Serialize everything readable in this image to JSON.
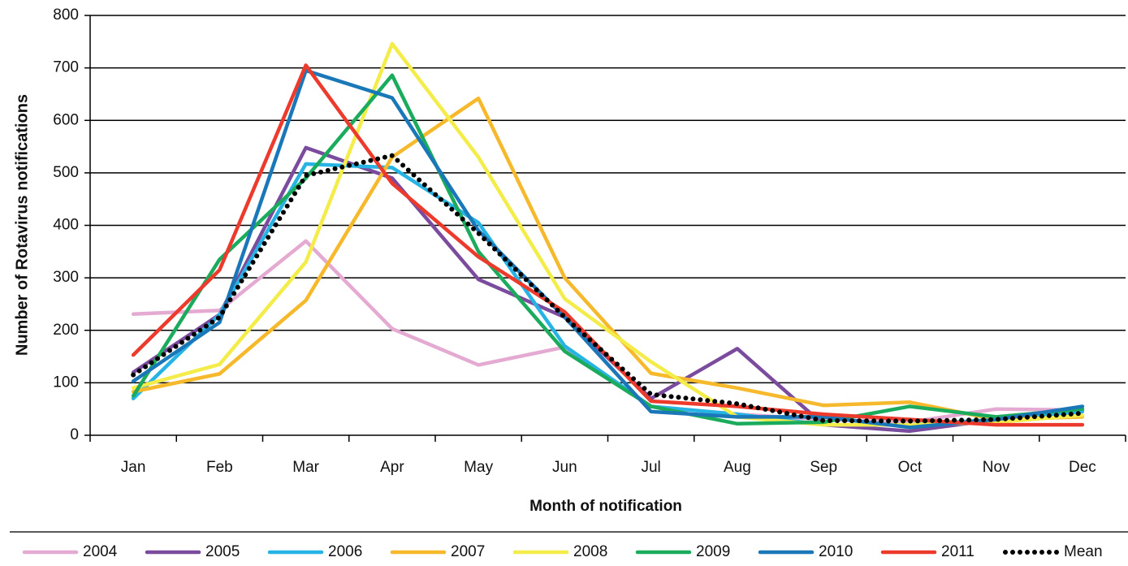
{
  "chart_data": {
    "type": "line",
    "x_label": "Month of notification",
    "y_label": "Number of Rotavirus notifications",
    "categories": [
      "Jan",
      "Feb",
      "Mar",
      "Apr",
      "May",
      "Jun",
      "Jul",
      "Aug",
      "Sep",
      "Oct",
      "Nov",
      "Dec"
    ],
    "ylim": [
      0,
      800
    ],
    "yticks": [
      0,
      100,
      200,
      300,
      400,
      500,
      600,
      700,
      800
    ],
    "grid": true,
    "legend": "bottom",
    "series": [
      {
        "name": "2004",
        "color": "#e4aad2",
        "values": [
          231,
          238,
          370,
          203,
          134,
          168,
          55,
          40,
          30,
          25,
          50,
          48
        ]
      },
      {
        "name": "2005",
        "color": "#7b4c9e",
        "values": [
          120,
          230,
          548,
          490,
          297,
          225,
          70,
          165,
          20,
          8,
          30,
          50
        ]
      },
      {
        "name": "2006",
        "color": "#27b4e4",
        "values": [
          70,
          230,
          517,
          510,
          405,
          170,
          55,
          40,
          20,
          20,
          30,
          45
        ]
      },
      {
        "name": "2007",
        "color": "#f6b92b",
        "values": [
          83,
          117,
          257,
          530,
          642,
          300,
          118,
          90,
          57,
          63,
          30,
          35
        ]
      },
      {
        "name": "2008",
        "color": "#f4ec48",
        "values": [
          90,
          135,
          330,
          746,
          530,
          260,
          140,
          35,
          20,
          20,
          25,
          38
        ]
      },
      {
        "name": "2009",
        "color": "#1bab5c",
        "values": [
          75,
          335,
          490,
          686,
          350,
          160,
          55,
          22,
          25,
          55,
          35,
          50
        ]
      },
      {
        "name": "2010",
        "color": "#1a77b8",
        "values": [
          103,
          215,
          695,
          643,
          390,
          225,
          45,
          35,
          35,
          15,
          30,
          55
        ]
      },
      {
        "name": "2011",
        "color": "#ec3a2c",
        "values": [
          153,
          315,
          705,
          480,
          340,
          235,
          65,
          55,
          40,
          30,
          20,
          20
        ]
      },
      {
        "name": "Mean",
        "color": "#000000",
        "style": "dotted",
        "values": [
          115,
          225,
          495,
          533,
          385,
          225,
          78,
          60,
          28,
          27,
          30,
          42
        ]
      }
    ]
  }
}
